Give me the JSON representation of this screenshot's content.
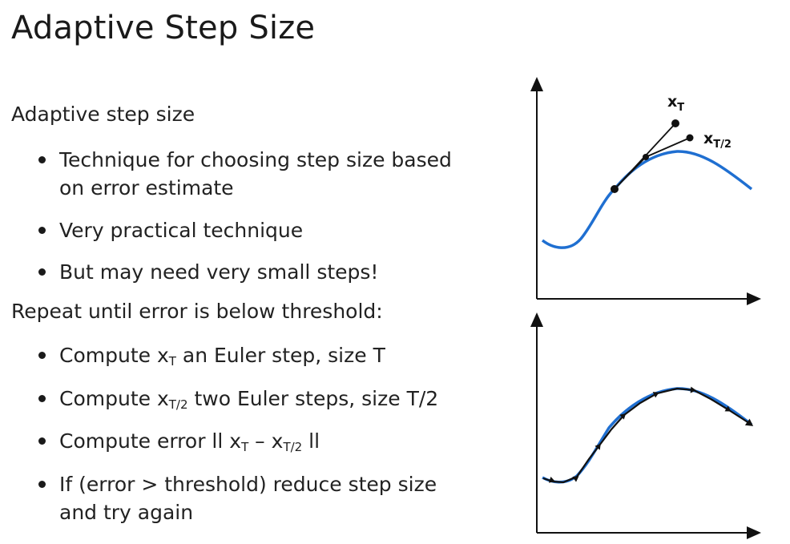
{
  "slide": {
    "title": "Adaptive Step Size",
    "section1_heading": "Adaptive step size",
    "section1_bullets": [
      "Technique for choosing step size based on error estimate",
      "Very practical technique",
      "But may need very small steps!"
    ],
    "section2_heading": "Repeat until error is below threshold:",
    "section2_bullets": {
      "b1_pre": "Compute x",
      "b1_sub": "T",
      "b1_post": " an Euler step, size T",
      "b2_pre": "Compute x",
      "b2_sub": "T/2",
      "b2_post": " two Euler steps, size T/2",
      "b3_pre": "Compute error ll x",
      "b3_sub1": "T",
      "b3_mid": " – x",
      "b3_sub2": "T/2",
      "b3_post": " ll",
      "b4": "If (error > threshold) reduce step size and try again"
    }
  },
  "diagram_top": {
    "label_xT": "x",
    "label_xT_sub": "T",
    "label_xT2": "x",
    "label_xT2_sub": "T/2",
    "curve_color": "#1f6fd1"
  },
  "diagram_bottom": {
    "curve_color": "#1f6fd1",
    "step_color": "#111111"
  }
}
